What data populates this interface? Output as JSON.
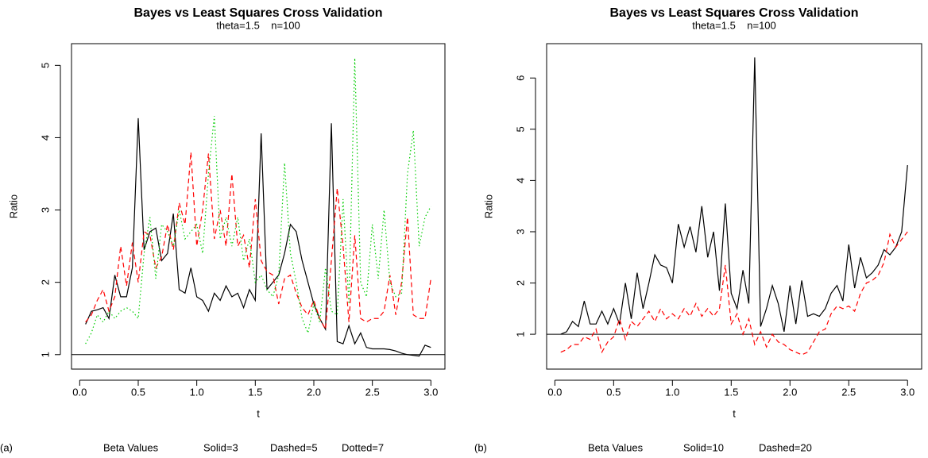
{
  "chart_data": [
    {
      "type": "line",
      "title": "Bayes vs Least Squares Cross Validation",
      "subtitle": "theta=1.5    n=100",
      "label": "(a)",
      "legend_title": "Beta Values",
      "xlabel": "t",
      "ylabel": "Ratio",
      "xlim": [
        -0.07,
        3.12
      ],
      "ylim": [
        0.8,
        5.3
      ],
      "xticks": [
        {
          "value": 0,
          "label": "0.0"
        },
        0.5,
        {
          "value": 1,
          "label": "1.0"
        },
        1.5,
        {
          "value": 2,
          "label": "2.0"
        },
        2.5,
        {
          "value": 3,
          "label": "3.0"
        }
      ],
      "yticks": [
        1,
        2,
        3,
        4,
        5
      ],
      "reference_line": 1,
      "x": [
        0.05,
        0.1,
        0.15,
        0.2,
        0.25,
        0.3,
        0.35,
        0.4,
        0.45,
        0.5,
        0.55,
        0.6,
        0.65,
        0.7,
        0.75,
        0.8,
        0.85,
        0.9,
        0.95,
        1.0,
        1.05,
        1.1,
        1.15,
        1.2,
        1.25,
        1.3,
        1.35,
        1.4,
        1.45,
        1.5,
        1.55,
        1.6,
        1.65,
        1.7,
        1.75,
        1.8,
        1.85,
        1.9,
        1.95,
        2.0,
        2.05,
        2.1,
        2.15,
        2.2,
        2.25,
        2.3,
        2.35,
        2.4,
        2.45,
        2.5,
        2.55,
        2.6,
        2.65,
        2.7,
        2.75,
        2.8,
        2.85,
        2.9,
        2.95,
        3.0
      ],
      "series": [
        {
          "name": "Solid=3",
          "color": "#000000",
          "dash": "solid",
          "values": [
            1.42,
            1.6,
            1.62,
            1.65,
            1.5,
            2.1,
            1.8,
            1.8,
            2.2,
            4.27,
            2.45,
            2.7,
            2.75,
            2.3,
            2.4,
            2.95,
            1.9,
            1.85,
            2.2,
            1.8,
            1.75,
            1.6,
            1.85,
            1.75,
            1.95,
            1.8,
            1.85,
            1.65,
            1.9,
            1.75,
            4.06,
            1.9,
            2.0,
            2.1,
            2.4,
            2.8,
            2.7,
            2.3,
            2.0,
            1.7,
            1.5,
            1.35,
            4.2,
            1.18,
            1.15,
            1.4,
            1.15,
            1.3,
            1.1,
            1.08,
            1.08,
            1.08,
            1.07,
            1.05,
            1.02,
            1.0,
            0.99,
            0.98,
            1.13,
            1.1
          ]
        },
        {
          "name": "Dashed=5",
          "color": "#ff0000",
          "dash": "dashed",
          "values": [
            1.45,
            1.55,
            1.75,
            1.9,
            1.6,
            1.8,
            2.5,
            1.95,
            2.55,
            2.0,
            2.7,
            2.65,
            2.2,
            2.35,
            2.8,
            2.45,
            3.1,
            2.8,
            3.8,
            2.5,
            3.0,
            3.78,
            2.6,
            3.0,
            2.5,
            3.5,
            2.5,
            2.65,
            2.2,
            3.15,
            2.3,
            2.15,
            2.1,
            1.7,
            2.05,
            2.1,
            1.85,
            1.65,
            1.55,
            1.75,
            1.5,
            1.35,
            2.3,
            3.3,
            2.5,
            1.45,
            2.65,
            1.5,
            1.45,
            1.5,
            1.5,
            1.6,
            2.1,
            1.55,
            2.0,
            2.9,
            1.55,
            1.5,
            1.5,
            2.05
          ]
        },
        {
          "name": "Dotted=7",
          "color": "#00cd00",
          "dash": "dotted",
          "values": [
            1.15,
            1.3,
            1.55,
            1.45,
            1.6,
            1.5,
            1.6,
            1.65,
            1.6,
            1.5,
            2.4,
            2.9,
            2.05,
            2.8,
            2.7,
            2.5,
            3.0,
            2.6,
            2.7,
            2.8,
            2.4,
            3.5,
            4.3,
            2.6,
            2.9,
            2.5,
            2.9,
            2.3,
            2.6,
            2.0,
            2.1,
            1.9,
            1.8,
            2.1,
            3.65,
            2.4,
            2.0,
            1.5,
            1.3,
            1.7,
            1.45,
            2.2,
            1.6,
            1.55,
            3.15,
            1.7,
            5.1,
            2.0,
            1.8,
            2.8,
            2.05,
            3.0,
            2.0,
            1.8,
            1.85,
            3.5,
            4.1,
            2.5,
            2.9,
            3.05
          ]
        }
      ]
    },
    {
      "type": "line",
      "title": "Bayes vs Least Squares Cross Validation",
      "subtitle": "theta=1.5    n=100",
      "label": "(b)",
      "legend_title": "Beta Values",
      "xlabel": "t",
      "ylabel": "Ratio",
      "xlim": [
        -0.07,
        3.12
      ],
      "ylim": [
        0.32,
        6.67
      ],
      "xticks": [
        {
          "value": 0,
          "label": "0.0"
        },
        0.5,
        {
          "value": 1,
          "label": "1.0"
        },
        1.5,
        {
          "value": 2,
          "label": "2.0"
        },
        2.5,
        {
          "value": 3,
          "label": "3.0"
        }
      ],
      "yticks": [
        1,
        2,
        3,
        4,
        5,
        6
      ],
      "reference_line": 1,
      "x": [
        0.05,
        0.1,
        0.15,
        0.2,
        0.25,
        0.3,
        0.35,
        0.4,
        0.45,
        0.5,
        0.55,
        0.6,
        0.65,
        0.7,
        0.75,
        0.8,
        0.85,
        0.9,
        0.95,
        1.0,
        1.05,
        1.1,
        1.15,
        1.2,
        1.25,
        1.3,
        1.35,
        1.4,
        1.45,
        1.5,
        1.55,
        1.6,
        1.65,
        1.7,
        1.75,
        1.8,
        1.85,
        1.9,
        1.95,
        2.0,
        2.05,
        2.1,
        2.15,
        2.2,
        2.25,
        2.3,
        2.35,
        2.4,
        2.45,
        2.5,
        2.55,
        2.6,
        2.65,
        2.7,
        2.75,
        2.8,
        2.85,
        2.9,
        2.95,
        3.0
      ],
      "series": [
        {
          "name": "Solid=10",
          "color": "#000000",
          "dash": "solid",
          "values": [
            1.0,
            1.05,
            1.25,
            1.15,
            1.65,
            1.2,
            1.2,
            1.45,
            1.2,
            1.5,
            1.2,
            2.0,
            1.3,
            2.2,
            1.5,
            2.0,
            2.55,
            2.35,
            2.3,
            2.0,
            3.15,
            2.7,
            3.1,
            2.6,
            3.5,
            2.5,
            3.0,
            1.85,
            3.55,
            1.8,
            1.5,
            2.25,
            1.6,
            6.4,
            1.15,
            1.5,
            1.95,
            1.6,
            1.05,
            1.95,
            1.2,
            2.05,
            1.35,
            1.4,
            1.35,
            1.5,
            1.8,
            1.95,
            1.65,
            2.75,
            1.9,
            2.5,
            2.1,
            2.2,
            2.35,
            2.65,
            2.55,
            2.7,
            3.0,
            4.3
          ]
        },
        {
          "name": "Dashed=20",
          "color": "#ff0000",
          "dash": "dashed",
          "values": [
            0.65,
            0.7,
            0.8,
            0.8,
            0.95,
            0.9,
            1.1,
            0.65,
            0.85,
            0.95,
            1.3,
            0.9,
            1.25,
            1.15,
            1.3,
            1.45,
            1.25,
            1.5,
            1.3,
            1.4,
            1.3,
            1.5,
            1.35,
            1.6,
            1.35,
            1.5,
            1.35,
            1.5,
            2.35,
            1.2,
            1.4,
            1.0,
            1.3,
            0.8,
            1.05,
            0.75,
            1.0,
            0.85,
            0.8,
            0.7,
            0.65,
            0.6,
            0.65,
            0.85,
            1.05,
            1.1,
            1.4,
            1.55,
            1.5,
            1.55,
            1.45,
            1.8,
            2.0,
            2.05,
            2.15,
            2.4,
            2.95,
            2.7,
            2.85,
            3.0
          ]
        }
      ]
    }
  ]
}
